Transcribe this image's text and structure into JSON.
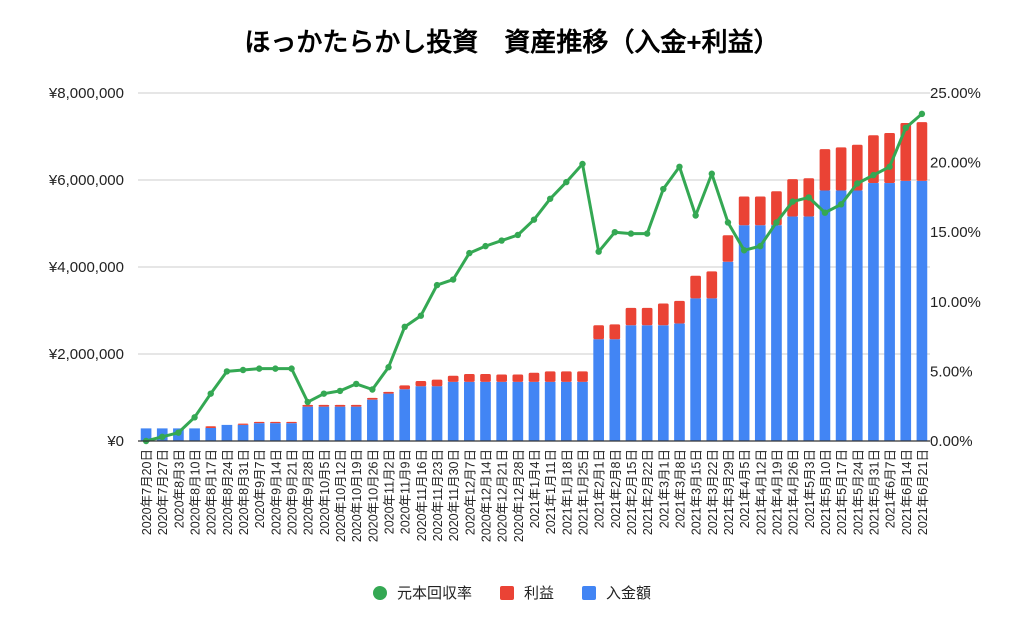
{
  "chart_data": {
    "type": "bar",
    "title": "ほっかたらかし投資　資産推移（入金+利益）",
    "categories": [
      "2020年7月20日",
      "2020年7月27日",
      "2020年8月3日",
      "2020年8月10日",
      "2020年8月17日",
      "2020年8月24日",
      "2020年8月31日",
      "2020年9月7日",
      "2020年9月14日",
      "2020年9月21日",
      "2020年9月28日",
      "2020年10月5日",
      "2020年10月12日",
      "2020年10月19日",
      "2020年10月26日",
      "2020年11月2日",
      "2020年11月9日",
      "2020年11月16日",
      "2020年11月23日",
      "2020年11月30日",
      "2020年12月7日",
      "2020年12月14日",
      "2020年12月21日",
      "2020年12月28日",
      "2021年1月4日",
      "2021年1月11日",
      "2021年1月18日",
      "2021年1月25日",
      "2021年2月1日",
      "2021年2月8日",
      "2021年2月15日",
      "2021年2月22日",
      "2021年3月1日",
      "2021年3月8日",
      "2021年3月15日",
      "2021年3月22日",
      "2021年3月29日",
      "2021年4月5日",
      "2021年4月12日",
      "2021年4月19日",
      "2021年4月26日",
      "2021年5月3日",
      "2021年5月10日",
      "2021年5月17日",
      "2021年5月24日",
      "2021年5月31日",
      "2021年6月7日",
      "2021年6月14日",
      "2021年6月21日"
    ],
    "series": [
      {
        "name": "入金額",
        "type": "bar",
        "stack": "total",
        "axis": "left",
        "color": "#4285f4",
        "values": [
          290000,
          290000,
          290000,
          290000,
          300000,
          370000,
          370000,
          410000,
          410000,
          410000,
          790000,
          790000,
          790000,
          790000,
          950000,
          1090000,
          1190000,
          1260000,
          1260000,
          1360000,
          1360000,
          1360000,
          1360000,
          1360000,
          1360000,
          1360000,
          1360000,
          1360000,
          2340000,
          2340000,
          2660000,
          2660000,
          2660000,
          2700000,
          3280000,
          3280000,
          4120000,
          4960000,
          4960000,
          4960000,
          5160000,
          5160000,
          5760000,
          5760000,
          5760000,
          5930000,
          5930000,
          5980000,
          5980000
        ]
      },
      {
        "name": "利益",
        "type": "bar",
        "stack": "total",
        "axis": "left",
        "color": "#ea4335",
        "values": [
          0,
          0,
          0,
          0,
          40000,
          0,
          30000,
          30000,
          30000,
          30000,
          40000,
          40000,
          40000,
          40000,
          40000,
          40000,
          90000,
          120000,
          150000,
          140000,
          180000,
          180000,
          170000,
          170000,
          210000,
          240000,
          240000,
          240000,
          320000,
          340000,
          400000,
          400000,
          500000,
          520000,
          520000,
          620000,
          610000,
          660000,
          660000,
          780000,
          860000,
          880000,
          950000,
          990000,
          1050000,
          1100000,
          1150000,
          1330000,
          1350000
        ]
      },
      {
        "name": "元本回収率",
        "type": "line",
        "axis": "right",
        "color": "#34a853",
        "values": [
          0.0,
          0.3,
          0.6,
          1.7,
          3.4,
          5.0,
          5.1,
          5.2,
          5.2,
          5.2,
          2.8,
          3.4,
          3.6,
          4.1,
          3.7,
          5.3,
          8.2,
          9.0,
          11.2,
          11.6,
          13.5,
          14.0,
          14.4,
          14.8,
          15.9,
          17.4,
          18.6,
          19.9,
          13.6,
          15.0,
          14.9,
          14.9,
          18.1,
          19.7,
          16.2,
          19.2,
          15.7,
          13.7,
          14.0,
          15.7,
          17.2,
          17.5,
          16.4,
          17.0,
          18.5,
          19.1,
          19.7,
          22.5,
          23.5
        ]
      }
    ],
    "y_left": {
      "ylim": [
        0,
        8000000
      ],
      "ticks": [
        "¥0",
        "¥2,000,000",
        "¥4,000,000",
        "¥6,000,000",
        "¥8,000,000"
      ],
      "tick_values": [
        0,
        2000000,
        4000000,
        6000000,
        8000000
      ]
    },
    "y_right": {
      "ylim": [
        0,
        25
      ],
      "ticks": [
        "0.00%",
        "5.00%",
        "10.00%",
        "15.00%",
        "20.00%",
        "25.00%"
      ],
      "tick_values": [
        0,
        5,
        10,
        15,
        20,
        25
      ]
    },
    "xlabel": "",
    "ylabel": "",
    "grid": true,
    "legend_position": "bottom",
    "legend": [
      {
        "label": "元本回収率",
        "shape": "circle",
        "color": "#34a853"
      },
      {
        "label": "利益",
        "shape": "square",
        "color": "#ea4335"
      },
      {
        "label": "入金額",
        "shape": "square",
        "color": "#4285f4"
      }
    ]
  }
}
